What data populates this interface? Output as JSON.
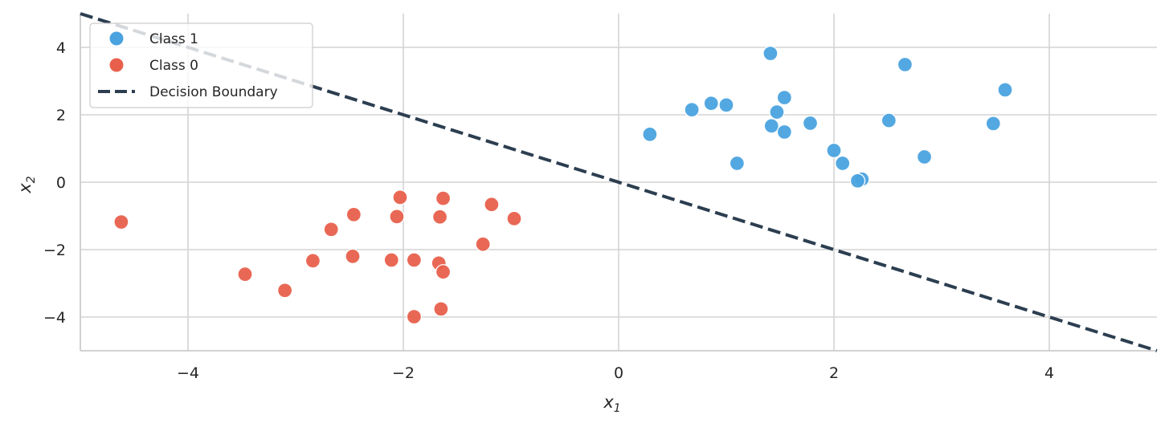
{
  "chart_data": {
    "type": "scatter",
    "title": "",
    "xlabel": "x1",
    "ylabel": "x2",
    "xlabel_main": "x",
    "xlabel_sub": "1",
    "ylabel_main": "x",
    "ylabel_sub": "2",
    "xlim": [
      -5,
      5
    ],
    "ylim": [
      -5,
      5
    ],
    "grid": true,
    "legend_position": "upper left",
    "xticks": [
      -4,
      -2,
      0,
      2,
      4
    ],
    "yticks": [
      -4,
      -2,
      0,
      2,
      4
    ],
    "xtick_labels": [
      "−4",
      "−2",
      "0",
      "2",
      "4"
    ],
    "ytick_labels": [
      "−4",
      "−2",
      "0",
      "2",
      "4"
    ],
    "legend": [
      "Class 1",
      "Class 0",
      "Decision Boundary"
    ],
    "series": [
      {
        "name": "Class 1",
        "kind": "scatter",
        "color": "#4aa3df",
        "points": [
          [
            0.29,
            1.42
          ],
          [
            0.68,
            2.15
          ],
          [
            0.86,
            2.34
          ],
          [
            1.0,
            2.29
          ],
          [
            1.41,
            3.82
          ],
          [
            1.54,
            2.51
          ],
          [
            1.47,
            2.08
          ],
          [
            1.42,
            1.67
          ],
          [
            1.54,
            1.49
          ],
          [
            1.78,
            1.75
          ],
          [
            1.1,
            0.56
          ],
          [
            2.0,
            0.94
          ],
          [
            2.08,
            0.56
          ],
          [
            2.26,
            0.09
          ],
          [
            2.22,
            0.04
          ],
          [
            2.51,
            1.83
          ],
          [
            2.66,
            3.49
          ],
          [
            2.84,
            0.75
          ],
          [
            3.48,
            1.74
          ],
          [
            3.59,
            2.74
          ]
        ]
      },
      {
        "name": "Class 0",
        "kind": "scatter",
        "color": "#e8604c",
        "points": [
          [
            -4.62,
            -1.18
          ],
          [
            -2.67,
            -1.4
          ],
          [
            -3.47,
            -2.73
          ],
          [
            -3.1,
            -3.21
          ],
          [
            -2.84,
            -2.33
          ],
          [
            -2.46,
            -0.96
          ],
          [
            -2.03,
            -0.45
          ],
          [
            -2.06,
            -1.02
          ],
          [
            -1.63,
            -0.48
          ],
          [
            -1.66,
            -1.03
          ],
          [
            -1.18,
            -0.66
          ],
          [
            -0.97,
            -1.08
          ],
          [
            -1.26,
            -1.84
          ],
          [
            -2.47,
            -2.2
          ],
          [
            -2.11,
            -2.31
          ],
          [
            -1.9,
            -2.31
          ],
          [
            -1.67,
            -2.4
          ],
          [
            -1.63,
            -2.66
          ],
          [
            -1.65,
            -3.76
          ],
          [
            -1.9,
            -3.99
          ]
        ]
      },
      {
        "name": "Decision Boundary",
        "kind": "line",
        "style": "dashed",
        "color": "#2c3e50",
        "points": [
          [
            -5,
            5
          ],
          [
            5,
            -5
          ]
        ]
      }
    ]
  },
  "colors": {
    "grid": "#d4d4d4",
    "axis": "#cccccc",
    "legend_border": "#cccccc"
  }
}
